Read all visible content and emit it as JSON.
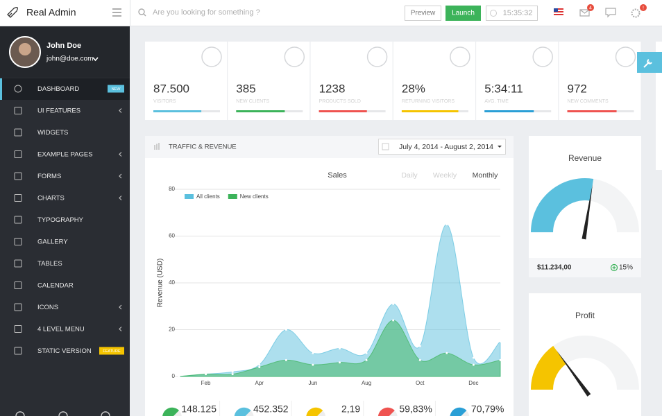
{
  "header": {
    "brand": "Real Admin",
    "search_placeholder": "Are you looking for something ?",
    "preview": "Preview",
    "launch": "Launch",
    "time": "15:35:32",
    "mail_badge": "4",
    "settings_badge": "!"
  },
  "user": {
    "name": "John Doe",
    "email": "john@doe.com"
  },
  "menu": [
    {
      "label": "DASHBOARD",
      "badge": "NEW",
      "badge_color": "#5bc0de",
      "active": true
    },
    {
      "label": "UI FEATURES",
      "submenu": true
    },
    {
      "label": "WIDGETS"
    },
    {
      "label": "EXAMPLE PAGES",
      "submenu": true
    },
    {
      "label": "FORMS",
      "submenu": true
    },
    {
      "label": "CHARTS",
      "submenu": true
    },
    {
      "label": "TYPOGRAPHY"
    },
    {
      "label": "GALLERY"
    },
    {
      "label": "TABLES"
    },
    {
      "label": "CALENDAR"
    },
    {
      "label": "ICONS",
      "submenu": true
    },
    {
      "label": "4 LEVEL MENU",
      "submenu": true
    },
    {
      "label": "STATIC VERSION",
      "badge": "FEATURE",
      "badge_color": "#f5c400"
    }
  ],
  "stats": [
    {
      "value": "87.500",
      "label": "VISITORS",
      "progress": 72,
      "color": "#5bc0de"
    },
    {
      "value": "385",
      "label": "NEW CLIENTS",
      "progress": 73,
      "color": "#3cb35a"
    },
    {
      "value": "1238",
      "label": "PRODUCTS SOLD",
      "progress": 72,
      "color": "#ef5350"
    },
    {
      "value": "28%",
      "label": "RETURNING VISITORS",
      "progress": 85,
      "color": "#f5c400"
    },
    {
      "value": "5:34:11",
      "label": "AVG. TIME",
      "progress": 74,
      "color": "#2a9fd6"
    },
    {
      "value": "972",
      "label": "NEW COMMENTS",
      "progress": 74,
      "color": "#ef5350"
    }
  ],
  "traffic": {
    "title": "TRAFFIC & REVENUE",
    "date_range": "July 4, 2014 - August 2, 2014",
    "chart": {
      "type": "area",
      "title": "Sales",
      "tabs": [
        "Daily",
        "Weekly",
        "Monthly"
      ],
      "active_tab": 2,
      "y_label": "Revenue (USD)",
      "categories": [
        null,
        "Feb",
        null,
        "Apr",
        null,
        "Jun",
        null,
        "Aug",
        null,
        "Oct",
        null,
        "Dec",
        null
      ],
      "series": [
        {
          "name": "All clients",
          "color": "#5bc0de",
          "values": [
            0,
            1,
            2,
            5,
            20,
            10,
            12,
            10,
            31,
            13,
            65,
            8,
            15
          ]
        },
        {
          "name": "New clients",
          "color": "#3cb35a",
          "values": [
            0,
            1,
            1,
            4,
            7,
            5,
            6,
            7,
            24,
            7,
            10,
            5,
            7
          ]
        }
      ],
      "ylim": [
        0,
        80
      ],
      "yticks": [
        0,
        20,
        40,
        60,
        80
      ],
      "grid": true
    }
  },
  "summary": [
    {
      "value": "148.125",
      "color": "#3cb35a"
    },
    {
      "value": "452.352",
      "color": "#5bc0de"
    },
    {
      "value": "2,19",
      "color": "#f5c400"
    },
    {
      "value": "59,83%",
      "color": "#ef5350"
    },
    {
      "value": "70,79%",
      "color": "#2a9fd6"
    }
  ],
  "gauges": [
    {
      "title": "Revenue",
      "value": 55,
      "color": "#5bc0de",
      "amount": "$11.234,00",
      "change": "15%"
    },
    {
      "title": "Profit",
      "value": 30,
      "color": "#f5c400"
    }
  ]
}
